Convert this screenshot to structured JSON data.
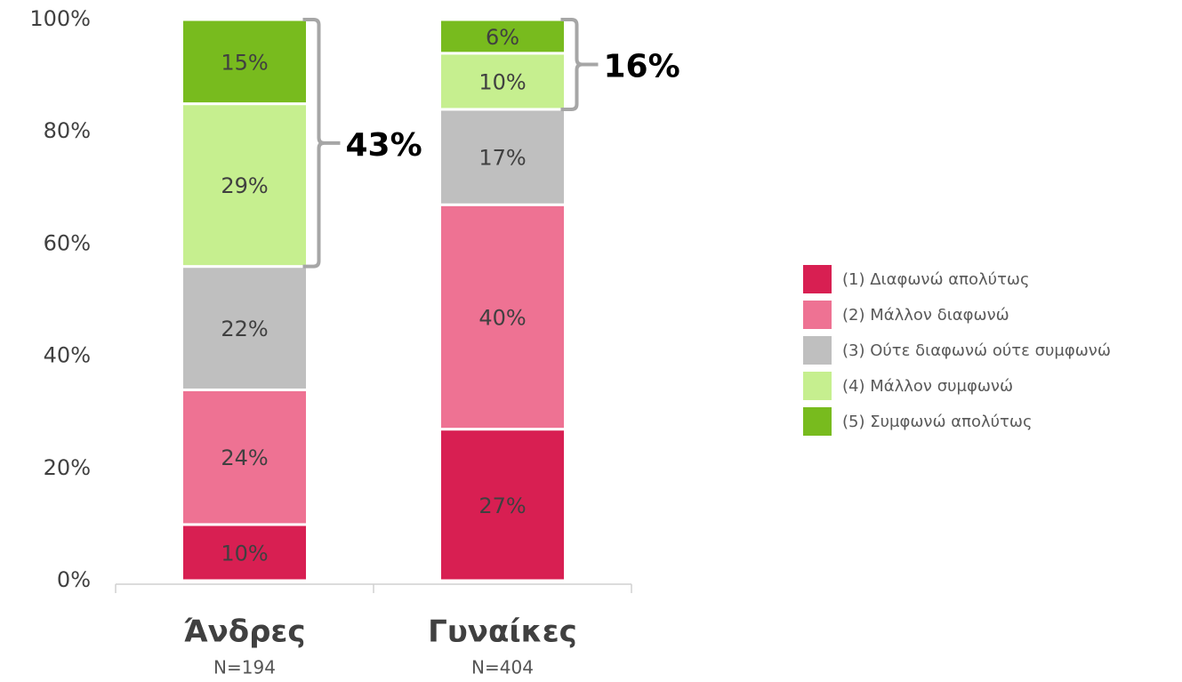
{
  "chart_data": {
    "type": "stacked_bar",
    "categories": [
      "Άνδρες",
      "Γυναίκες"
    ],
    "category_notes": [
      "N=194",
      "N=404"
    ],
    "series": [
      {
        "name": "(1) Διαφωνώ απολύτως",
        "color": "#d81f52",
        "values": [
          10,
          27
        ],
        "value_labels": [
          "10%",
          "27%"
        ]
      },
      {
        "name": "(2) Μάλλον διαφωνώ",
        "color": "#ee7293",
        "values": [
          24,
          40
        ],
        "value_labels": [
          "24%",
          "40%"
        ]
      },
      {
        "name": "(3) Ούτε διαφωνώ ούτε συμφωνώ",
        "color": "#bfbfbf",
        "values": [
          22,
          17
        ],
        "value_labels": [
          "22%",
          "17%"
        ]
      },
      {
        "name": "(4) Μάλλον συμφωνώ",
        "color": "#c6ef8f",
        "values": [
          29,
          10
        ],
        "value_labels": [
          "29%",
          "10%"
        ]
      },
      {
        "name": "(5) Συμφωνώ απολύτως",
        "color": "#78bb1e",
        "values": [
          15,
          6
        ],
        "value_labels": [
          "15%",
          "6%"
        ]
      }
    ],
    "annotations": [
      "43%",
      "16%"
    ],
    "ylim": [
      0,
      100
    ],
    "yticks": [
      {
        "value": 0,
        "label": "0%"
      },
      {
        "value": 20,
        "label": "20%"
      },
      {
        "value": 40,
        "label": "40%"
      },
      {
        "value": 60,
        "label": "60%"
      },
      {
        "value": 80,
        "label": "80%"
      },
      {
        "value": 100,
        "label": "100%"
      }
    ],
    "legend": "right"
  }
}
